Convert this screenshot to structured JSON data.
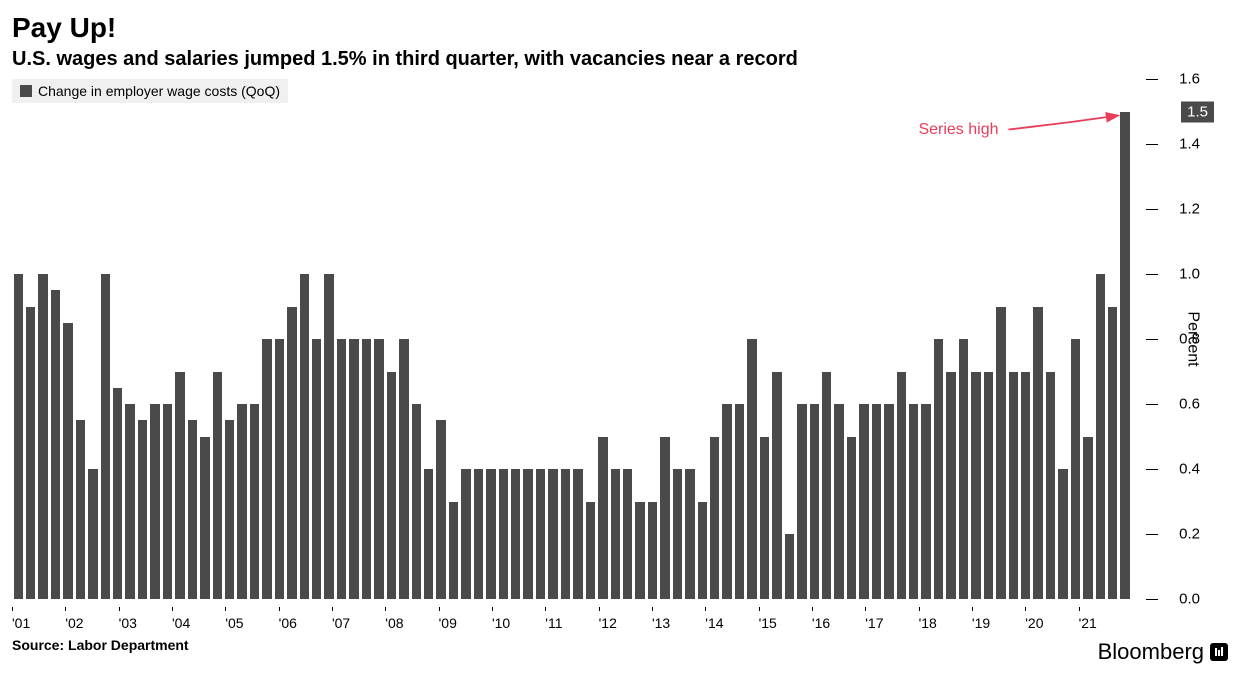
{
  "title": "Pay Up!",
  "subtitle": "U.S. wages and salaries jumped 1.5% in third quarter, with vacancies near a record",
  "legend_label": "Change in employer wage costs (QoQ)",
  "source": "Source: Labor Department",
  "brand": "Bloomberg",
  "annotation_text": "Series high",
  "y_axis_title": "Percent",
  "chart": {
    "type": "bar",
    "bar_color": "#4a4a4a",
    "background_color": "#ffffff",
    "highlight_value": "1.5",
    "annotation_color": "#e83e5a",
    "ylim": [
      0,
      1.6
    ],
    "ytick_step": 0.2,
    "y_ticks": [
      "0.0",
      "0.2",
      "0.4",
      "0.6",
      "0.8",
      "1.0",
      "1.2",
      "1.4",
      "1.6"
    ],
    "x_labels": [
      "'01",
      "'02",
      "'03",
      "'04",
      "'05",
      "'06",
      "'07",
      "'08",
      "'09",
      "'10",
      "'11",
      "'12",
      "'13",
      "'14",
      "'15",
      "'16",
      "'17",
      "'18",
      "'19",
      "'20",
      "'21"
    ],
    "values": [
      1.0,
      0.9,
      1.0,
      0.95,
      0.85,
      0.55,
      0.4,
      1.0,
      0.65,
      0.6,
      0.55,
      0.6,
      0.6,
      0.7,
      0.55,
      0.5,
      0.7,
      0.55,
      0.6,
      0.6,
      0.8,
      0.8,
      0.9,
      1.0,
      0.8,
      1.0,
      0.8,
      0.8,
      0.8,
      0.8,
      0.7,
      0.8,
      0.6,
      0.4,
      0.55,
      0.3,
      0.4,
      0.4,
      0.4,
      0.4,
      0.4,
      0.4,
      0.4,
      0.4,
      0.4,
      0.4,
      0.3,
      0.5,
      0.4,
      0.4,
      0.3,
      0.3,
      0.5,
      0.4,
      0.4,
      0.3,
      0.5,
      0.6,
      0.6,
      0.8,
      0.5,
      0.7,
      0.2,
      0.6,
      0.6,
      0.7,
      0.6,
      0.5,
      0.6,
      0.6,
      0.6,
      0.7,
      0.6,
      0.6,
      0.8,
      0.7,
      0.8,
      0.7,
      0.7,
      0.9,
      0.7,
      0.7,
      0.9,
      0.7,
      0.4,
      0.8,
      0.5,
      1.0,
      0.9,
      1.5
    ]
  }
}
